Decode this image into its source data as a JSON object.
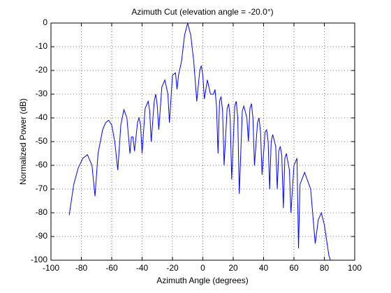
{
  "chart_data": {
    "type": "line",
    "title": "Azimuth Cut (elevation angle = -20.0°)",
    "x_label": "Azimuth Angle (degrees)",
    "y_label": "Normalized Power (dB)",
    "xlim": [
      -100,
      100
    ],
    "xticks": [
      -100,
      -80,
      -60,
      -40,
      -20,
      0,
      20,
      40,
      60,
      80,
      100
    ],
    "ylim": [
      -100,
      0
    ],
    "yticks": [
      -100,
      -90,
      -80,
      -70,
      -60,
      -50,
      -40,
      -30,
      -20,
      -10,
      0
    ],
    "grid": true,
    "series": [
      {
        "color": "#0000ff",
        "x": [
          -88,
          -85,
          -82,
          -79,
          -76,
          -73,
          -71,
          -69,
          -66,
          -64,
          -62,
          -60,
          -58,
          -56,
          -54,
          -52,
          -50,
          -48,
          -47,
          -46,
          -45,
          -43,
          -42,
          -41,
          -40,
          -38,
          -36,
          -35,
          -34,
          -32,
          -31,
          -30,
          -29,
          -27,
          -25,
          -23,
          -22,
          -20,
          -18,
          -17,
          -16,
          -14,
          -12,
          -10,
          -8,
          -6,
          -4,
          -2,
          -1,
          0,
          1,
          3,
          5,
          7,
          8,
          9,
          10,
          11,
          12,
          13,
          14,
          16,
          17,
          18,
          19,
          21,
          22,
          23,
          24,
          26,
          27,
          29,
          30,
          31,
          32,
          33,
          34,
          36,
          37,
          38,
          39,
          41,
          42,
          43,
          44,
          45,
          46,
          48,
          49,
          50,
          51,
          52,
          53,
          54,
          55,
          57,
          58,
          60,
          62,
          63,
          64,
          67,
          71,
          74,
          76,
          78,
          80,
          83,
          84
        ],
        "values": [
          -81,
          -68,
          -61,
          -57,
          -55.5,
          -60,
          -73,
          -55,
          -45,
          -42,
          -41,
          -43,
          -50,
          -62,
          -43,
          -36.5,
          -40,
          -55,
          -48,
          -48,
          -54,
          -42,
          -40,
          -43,
          -55,
          -36,
          -33,
          -37,
          -50,
          -33,
          -30,
          -35,
          -45,
          -27,
          -24,
          -30,
          -42,
          -22,
          -21,
          -28,
          -22,
          -16,
          -5,
          0,
          -5,
          -16,
          -33,
          -20,
          -18,
          -22,
          -32,
          -24,
          -30,
          -30,
          -28,
          -35,
          -55,
          -33,
          -31,
          -37,
          -60,
          -36,
          -34,
          -40,
          -66,
          -35,
          -33,
          -40,
          -72,
          -37,
          -35,
          -40,
          -50,
          -36,
          -34,
          -40,
          -60,
          -42,
          -40,
          -46,
          -64,
          -46,
          -45,
          -50,
          -70,
          -50,
          -47,
          -52,
          -70,
          -54,
          -52,
          -56,
          -78,
          -57,
          -55,
          -62,
          -80,
          -60,
          -57,
          -95,
          -68,
          -63,
          -70,
          -93,
          -83,
          -80,
          -85,
          -98,
          -100
        ]
      }
    ]
  }
}
